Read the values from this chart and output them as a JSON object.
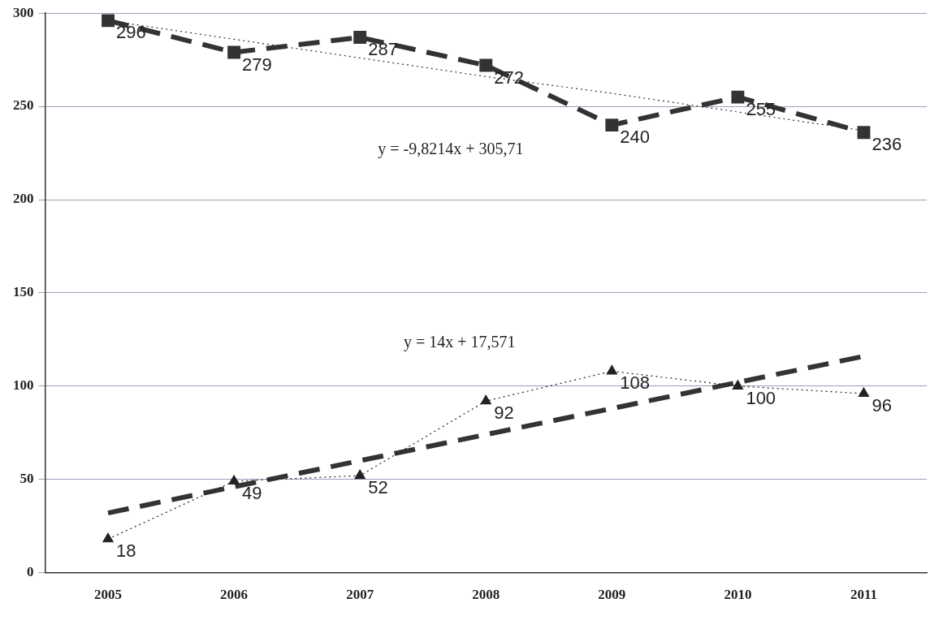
{
  "chart_data": {
    "type": "line",
    "categories": [
      "2005",
      "2006",
      "2007",
      "2008",
      "2009",
      "2010",
      "2011"
    ],
    "series": [
      {
        "color": "#333333",
        "values": [
          296,
          279,
          287,
          272,
          240,
          255,
          236
        ],
        "value_labels": [
          "296",
          "279",
          "287",
          "272",
          "240",
          "255",
          "236"
        ],
        "marker": "square",
        "line_style": "dashed"
      },
      {
        "color": "#222222",
        "values": [
          18,
          49,
          52,
          92,
          108,
          100,
          96
        ],
        "value_labels": [
          "18",
          "49",
          "52",
          "92",
          "108",
          "100",
          "96"
        ],
        "marker": "triangle",
        "line_style": "dotted"
      },
      {
        "type": "line",
        "color": "#333333",
        "values": [
          296,
          286,
          276,
          266,
          257,
          247,
          237
        ],
        "marker": "none",
        "line_style": "dotted"
      },
      {
        "type": "line",
        "color": "#333333",
        "values": [
          32,
          46,
          60,
          74,
          88,
          102,
          116
        ],
        "marker": "none",
        "line_style": "dashed"
      }
    ],
    "ylim": [
      0,
      300
    ],
    "yticks": [
      0,
      50,
      100,
      150,
      200,
      250,
      300
    ],
    "grid": "y",
    "legend": false,
    "annotations": [
      "y = -9,8214x + 305,71",
      "y = 14x + 17,571"
    ]
  }
}
